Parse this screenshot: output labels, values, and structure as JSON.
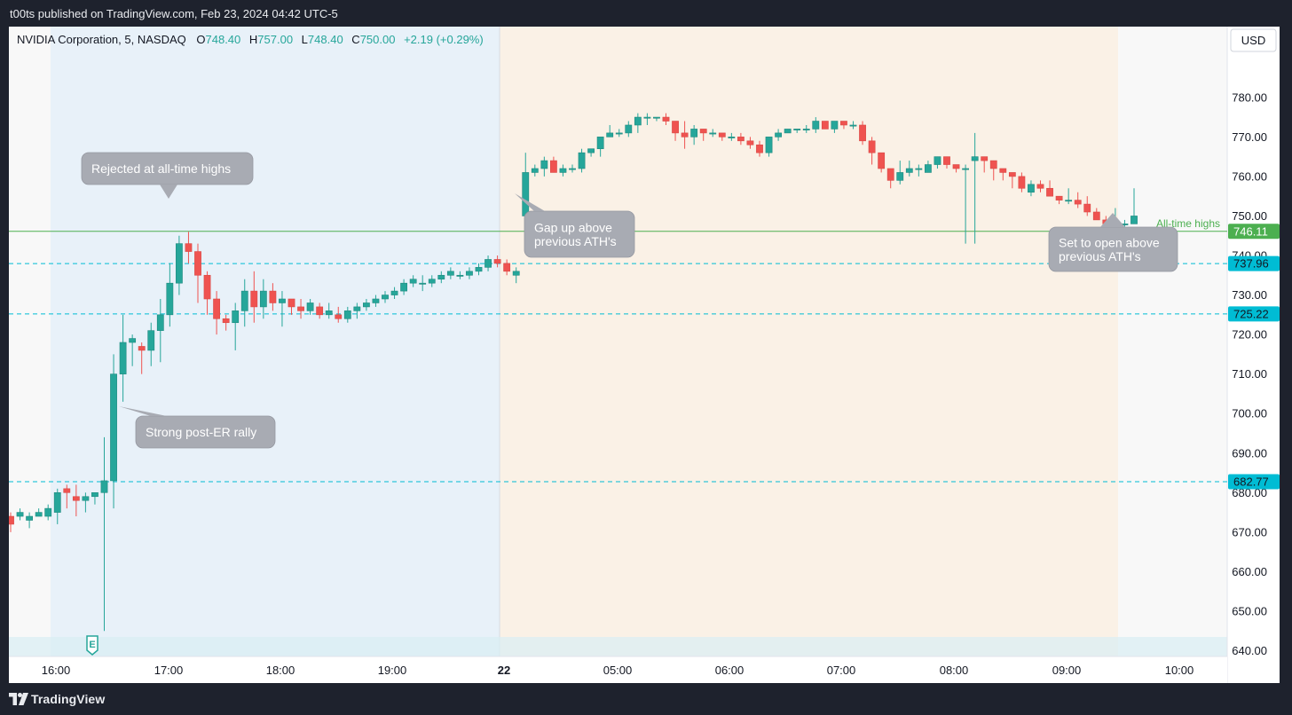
{
  "header": {
    "published": "t00ts published on TradingView.com, Feb 23, 2024 04:42 UTC-5"
  },
  "footer": {
    "brand": "TradingView",
    "logo_icon": "tradingview-logo-icon"
  },
  "legend": {
    "symbol": "NVIDIA Corporation, 5, NASDAQ",
    "o_label": "O",
    "o_value": "748.40",
    "h_label": "H",
    "h_value": "757.00",
    "l_label": "L",
    "l_value": "748.40",
    "c_label": "C",
    "c_value": "750.00",
    "change": "+2.19 (+0.29%)"
  },
  "currency": "USD",
  "colors": {
    "up": "#26a69a",
    "down": "#ef5350",
    "ath_line": "#4caf50",
    "level_line": "#00bcd4",
    "session_blue": "#e8f1f9",
    "session_orange": "#faf1e6",
    "callout": "#a8abb3"
  },
  "chart_data": {
    "type": "candlestick",
    "symbol": "NVDA",
    "interval": "5",
    "ylim": [
      632,
      788
    ],
    "y_ticks": [
      640,
      650,
      660,
      670,
      680,
      690,
      700,
      710,
      720,
      730,
      740,
      750,
      760,
      770,
      780
    ],
    "x_tick_labels": [
      "16:00",
      "17:00",
      "18:00",
      "19:00",
      "22",
      "05:00",
      "06:00",
      "07:00",
      "08:00",
      "09:00",
      "10:00"
    ],
    "candles": [
      [
        674,
        675,
        670,
        672
      ],
      [
        674,
        676,
        673,
        675
      ],
      [
        673,
        675,
        671,
        674
      ],
      [
        674,
        676,
        674,
        675
      ],
      [
        674,
        677,
        673,
        676
      ],
      [
        675,
        681,
        672,
        680
      ],
      [
        681,
        682,
        676,
        680
      ],
      [
        679,
        682,
        674,
        678
      ],
      [
        678,
        680,
        675,
        679
      ],
      [
        679,
        680,
        677,
        680
      ],
      [
        680,
        694,
        645,
        683
      ],
      [
        683,
        715,
        676,
        710
      ],
      [
        710,
        725,
        703,
        718
      ],
      [
        718,
        720,
        712,
        719
      ],
      [
        717,
        718,
        710,
        716
      ],
      [
        716,
        723,
        712,
        721
      ],
      [
        721,
        729,
        713,
        725
      ],
      [
        725,
        738,
        722,
        733
      ],
      [
        733,
        745,
        730,
        743
      ],
      [
        743,
        746,
        738,
        741
      ],
      [
        741,
        743,
        728,
        735
      ],
      [
        735,
        736,
        725,
        729
      ],
      [
        729,
        731,
        720,
        724
      ],
      [
        724,
        725,
        721,
        723
      ],
      [
        723,
        728,
        716,
        726
      ],
      [
        726,
        734,
        722,
        731
      ],
      [
        731,
        736,
        723,
        727
      ],
      [
        727,
        734,
        724,
        731
      ],
      [
        731,
        733,
        726,
        728
      ],
      [
        728,
        731,
        722,
        729
      ],
      [
        729,
        729,
        725,
        727
      ],
      [
        727,
        729,
        724,
        726
      ],
      [
        726,
        729,
        725,
        728
      ],
      [
        727,
        728,
        724,
        725
      ],
      [
        725,
        728,
        724,
        726
      ],
      [
        725,
        727,
        723,
        724
      ],
      [
        724,
        727,
        723,
        726
      ],
      [
        726,
        728,
        724,
        727
      ],
      [
        727,
        729,
        726,
        728
      ],
      [
        728,
        730,
        727,
        729
      ],
      [
        729,
        731,
        728,
        730
      ],
      [
        730,
        732,
        729,
        731
      ],
      [
        731,
        734,
        730,
        733
      ],
      [
        733,
        735,
        732,
        734
      ],
      [
        733,
        735,
        731,
        733
      ],
      [
        733,
        735,
        732,
        734
      ],
      [
        734,
        736,
        733,
        735
      ],
      [
        735,
        737,
        734,
        736
      ],
      [
        735,
        736,
        734,
        735
      ],
      [
        735,
        737,
        734,
        736
      ],
      [
        736,
        738,
        735,
        737
      ],
      [
        737,
        740,
        736,
        739
      ],
      [
        739,
        740,
        737,
        738
      ],
      [
        738,
        739,
        735,
        736
      ],
      [
        735,
        737,
        733,
        736
      ],
      [
        750,
        766,
        742,
        761
      ],
      [
        761,
        763,
        760,
        762
      ],
      [
        762,
        765,
        760,
        764
      ],
      [
        764,
        765,
        761,
        761
      ],
      [
        761,
        763,
        760,
        762
      ],
      [
        762,
        763,
        761,
        762
      ],
      [
        762,
        767,
        761,
        766
      ],
      [
        766,
        767,
        765,
        767
      ],
      [
        767,
        770,
        765,
        770
      ],
      [
        770,
        773,
        770,
        771
      ],
      [
        771,
        772,
        770,
        771
      ],
      [
        771,
        774,
        770,
        773
      ],
      [
        773,
        776,
        771,
        775
      ],
      [
        775,
        776,
        773,
        775
      ],
      [
        775,
        775,
        774,
        775
      ],
      [
        775,
        776,
        773,
        774
      ],
      [
        774,
        774,
        769,
        771
      ],
      [
        771,
        774,
        767,
        770
      ],
      [
        770,
        773,
        768,
        772
      ],
      [
        772,
        772,
        769,
        771
      ],
      [
        771,
        772,
        770,
        771
      ],
      [
        771,
        771,
        769,
        770
      ],
      [
        770,
        771,
        769,
        770
      ],
      [
        770,
        771,
        768,
        769
      ],
      [
        769,
        770,
        767,
        768
      ],
      [
        768,
        769,
        765,
        766
      ],
      [
        766,
        770,
        765,
        770
      ],
      [
        770,
        772,
        769,
        771
      ],
      [
        771,
        772,
        771,
        772
      ],
      [
        772,
        772,
        771,
        772
      ],
      [
        772,
        773,
        771,
        772
      ],
      [
        772,
        775,
        771,
        774
      ],
      [
        774,
        774,
        772,
        772
      ],
      [
        772,
        774,
        771,
        774
      ],
      [
        774,
        774,
        772,
        773
      ],
      [
        773,
        774,
        772,
        773
      ],
      [
        773,
        774,
        768,
        769
      ],
      [
        769,
        770,
        763,
        766
      ],
      [
        766,
        766,
        761,
        762
      ],
      [
        762,
        762,
        757,
        759
      ],
      [
        759,
        764,
        758,
        761
      ],
      [
        761,
        764,
        760,
        762
      ],
      [
        762,
        763,
        760,
        762
      ],
      [
        761,
        764,
        761,
        763
      ],
      [
        763,
        765,
        762,
        765
      ],
      [
        765,
        765,
        762,
        763
      ],
      [
        763,
        763,
        761,
        762
      ],
      [
        762,
        763,
        743,
        762
      ],
      [
        764,
        771,
        743,
        765
      ],
      [
        765,
        765,
        761,
        764
      ],
      [
        764,
        764,
        759,
        762
      ],
      [
        762,
        762,
        759,
        761
      ],
      [
        761,
        761,
        757,
        760
      ],
      [
        760,
        761,
        756,
        757
      ],
      [
        756,
        759,
        755,
        758
      ],
      [
        758,
        759,
        756,
        757
      ],
      [
        757,
        759,
        755,
        755
      ],
      [
        755,
        755,
        753,
        754
      ],
      [
        754,
        757,
        753,
        754
      ],
      [
        754,
        756,
        752,
        753
      ],
      [
        753,
        755,
        750,
        751
      ],
      [
        751,
        752,
        749,
        749
      ],
      [
        749,
        750,
        747,
        748
      ],
      [
        748,
        752,
        746,
        748
      ],
      [
        748,
        749,
        747,
        748
      ],
      [
        748,
        757,
        748,
        750
      ]
    ],
    "levels": [
      {
        "value": 746.11,
        "label": "746.11",
        "style": "solid",
        "color": "#4caf50",
        "name": "All-time highs"
      },
      {
        "value": 737.96,
        "label": "737.96",
        "style": "dashed",
        "color": "#00bcd4"
      },
      {
        "value": 725.22,
        "label": "725.22",
        "style": "dashed",
        "color": "#00bcd4"
      },
      {
        "value": 682.77,
        "label": "682.77",
        "style": "dashed",
        "color": "#00bcd4"
      }
    ],
    "annotations": [
      {
        "text": [
          "Rejected at all-time highs"
        ],
        "name": "callout-rejected-ath"
      },
      {
        "text": [
          "Strong post-ER rally"
        ],
        "name": "callout-post-er-rally"
      },
      {
        "text": [
          "Gap up above",
          "previous ATH's"
        ],
        "name": "callout-gap-up"
      },
      {
        "text": [
          "Set to open above",
          "previous ATH's"
        ],
        "name": "callout-set-to-open"
      }
    ],
    "earnings_marker": "E",
    "sessions": [
      {
        "name": "post-market",
        "color": "#e8f1f9"
      },
      {
        "name": "pre-market",
        "color": "#faf1e6"
      }
    ]
  }
}
